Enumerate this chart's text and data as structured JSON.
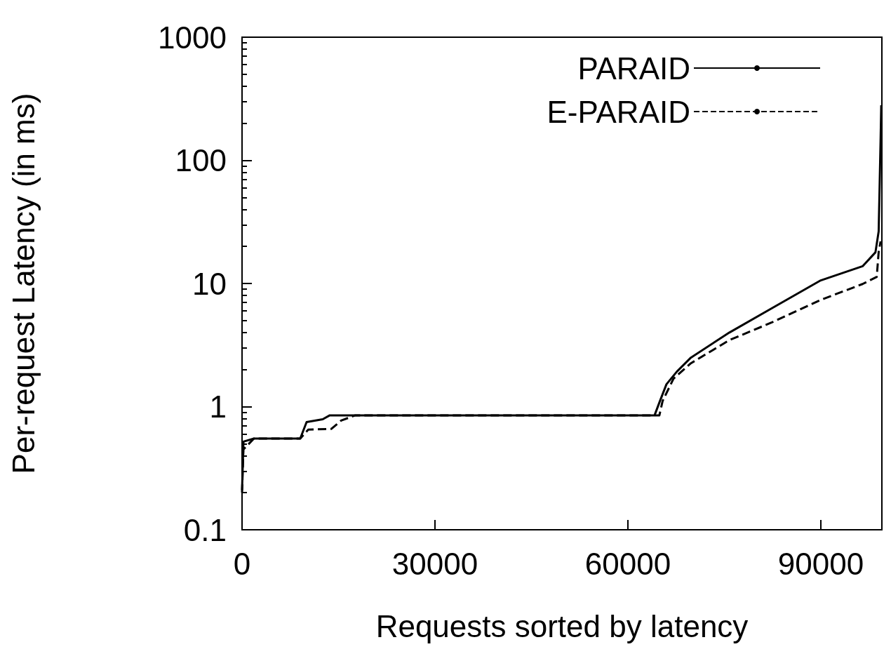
{
  "chart_data": {
    "type": "line",
    "xlabel": "Requests sorted by latency",
    "ylabel": "Per-request Latency (in ms)",
    "xlim": [
      0,
      99500
    ],
    "xticks": [
      0,
      30000,
      60000,
      90000
    ],
    "ylim": [
      0.1,
      1000
    ],
    "yticks": [
      0.1,
      1,
      10,
      100,
      1000
    ],
    "log": "y",
    "grid": false,
    "legend": "top right",
    "marker": "none",
    "series": [
      {
        "name": "PARAID",
        "color": "#000000",
        "line_style": "solid",
        "x": [
          0,
          218,
          1850,
          9050,
          10040,
          12550,
          13640,
          64150,
          64900,
          66000,
          67640,
          69800,
          75800,
          82400,
          90000,
          96500,
          98500,
          99000,
          99300,
          99400
        ],
        "values": [
          0.21,
          0.52,
          0.55,
          0.55,
          0.75,
          0.79,
          0.85,
          0.85,
          1.08,
          1.52,
          1.93,
          2.5,
          4.0,
          6.3,
          10.6,
          13.8,
          17.9,
          26.5,
          147,
          280
        ]
      },
      {
        "name": "E-PARAID",
        "color": "#000000",
        "line_style": "dashed",
        "x": [
          0,
          218,
          1850,
          9050,
          10300,
          13900,
          15400,
          17600,
          64900,
          65400,
          67100,
          69800,
          75800,
          82400,
          90000,
          96500,
          98700,
          99000,
          99300
        ],
        "values": [
          0.2,
          0.45,
          0.55,
          0.55,
          0.65,
          0.66,
          0.77,
          0.85,
          0.85,
          1.11,
          1.69,
          2.25,
          3.47,
          4.83,
          7.36,
          9.9,
          11.3,
          18,
          22
        ]
      }
    ]
  }
}
